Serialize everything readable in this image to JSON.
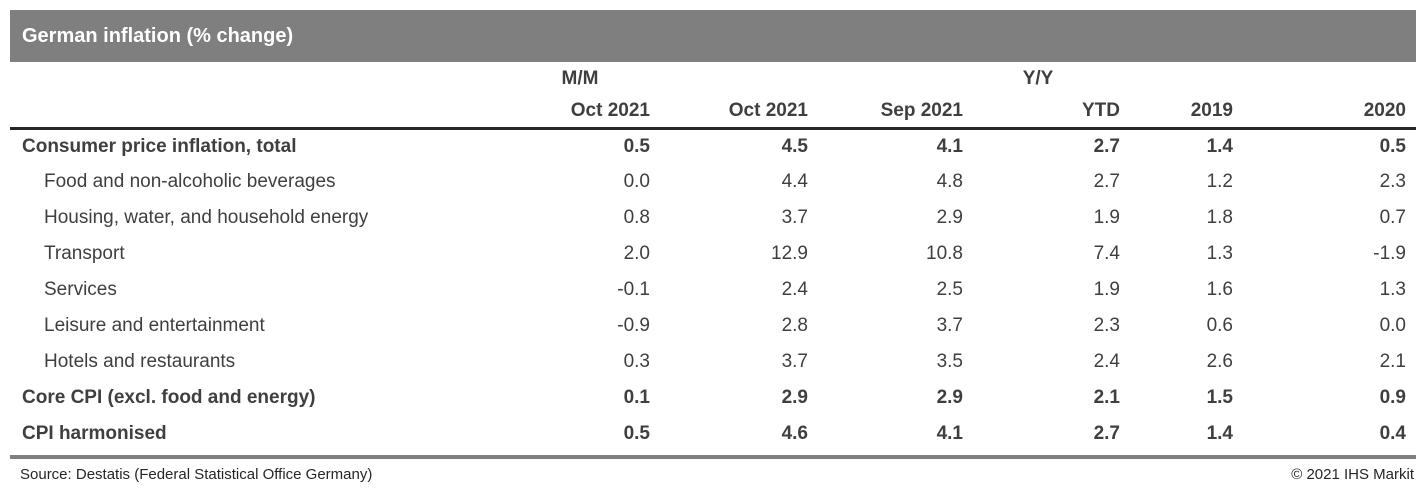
{
  "title_bar": {
    "title": "German inflation (% change)"
  },
  "chart_data": {
    "type": "table",
    "title": "German inflation (% change)",
    "column_groups": [
      {
        "label": "M/M",
        "columns": [
          0
        ]
      },
      {
        "label": "Y/Y",
        "columns": [
          1,
          2,
          3,
          4,
          5
        ]
      }
    ],
    "columns": [
      "Oct 2021",
      "Oct 2021",
      "Sep 2021",
      "YTD",
      "2019",
      "2020"
    ],
    "rows": [
      {
        "label": "Consumer price inflation, total",
        "style": "bold",
        "indent": 0,
        "values": [
          "0.5",
          "4.5",
          "4.1",
          "2.7",
          "1.4",
          "0.5"
        ]
      },
      {
        "label": "Food and non-alcoholic beverages",
        "style": "regular",
        "indent": 1,
        "values": [
          "0.0",
          "4.4",
          "4.8",
          "2.7",
          "1.2",
          "2.3"
        ]
      },
      {
        "label": "Housing, water, and household energy",
        "style": "regular",
        "indent": 1,
        "values": [
          "0.8",
          "3.7",
          "2.9",
          "1.9",
          "1.8",
          "0.7"
        ]
      },
      {
        "label": "Transport",
        "style": "regular",
        "indent": 1,
        "values": [
          "2.0",
          "12.9",
          "10.8",
          "7.4",
          "1.3",
          "-1.9"
        ]
      },
      {
        "label": "Services",
        "style": "regular",
        "indent": 1,
        "values": [
          "-0.1",
          "2.4",
          "2.5",
          "1.9",
          "1.6",
          "1.3"
        ]
      },
      {
        "label": "Leisure and entertainment",
        "style": "regular",
        "indent": 1,
        "values": [
          "-0.9",
          "2.8",
          "3.7",
          "2.3",
          "0.6",
          "0.0"
        ]
      },
      {
        "label": "Hotels and restaurants",
        "style": "regular",
        "indent": 1,
        "values": [
          "0.3",
          "3.7",
          "3.5",
          "2.4",
          "2.6",
          "2.1"
        ]
      },
      {
        "label": "Core CPI (excl. food and energy)",
        "style": "bold",
        "indent": 0,
        "values": [
          "0.1",
          "2.9",
          "2.9",
          "2.1",
          "1.5",
          "0.9"
        ]
      },
      {
        "label": "CPI harmonised",
        "style": "bold",
        "indent": 0,
        "values": [
          "0.5",
          "4.6",
          "4.1",
          "2.7",
          "1.4",
          "0.4"
        ]
      }
    ]
  },
  "footer": {
    "source": "Source: Destatis (Federal Statistical Office Germany)",
    "copyright": "© 2021 IHS Markit"
  },
  "colors": {
    "title_bar_bg": "#7f7f7f",
    "title_text": "#ffffff",
    "table_text": "#3f3f3f",
    "header_rule": "#262626",
    "footer_rule": "#808080",
    "footer_text": "#262626"
  }
}
